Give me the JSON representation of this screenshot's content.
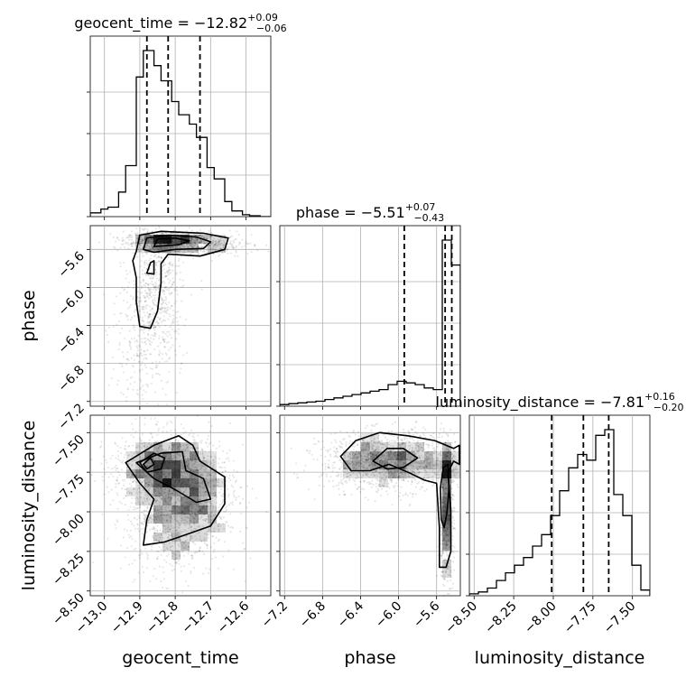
{
  "chart_data": {
    "type": "corner",
    "parameters": [
      "geocent_time",
      "phase",
      "luminosity_distance"
    ],
    "titles": [
      {
        "param": "geocent_time",
        "prefix": "geocent_time = ",
        "median": "−12.82",
        "plus": "+0.09",
        "minus": "−0.06"
      },
      {
        "param": "phase",
        "prefix": "phase = ",
        "median": "−5.51",
        "plus": "+0.07",
        "minus": "−0.43"
      },
      {
        "param": "luminosity_distance",
        "prefix": "luminosity_distance = ",
        "median": "−7.81",
        "plus": "+0.16",
        "minus": "−0.20"
      }
    ],
    "ranges": {
      "geocent_time": [
        -13.04,
        -12.53
      ],
      "phase": [
        -7.25,
        -5.35
      ],
      "luminosity_distance": [
        -8.53,
        -7.39
      ]
    },
    "ticks": {
      "geocent_time": [
        -13.0,
        -12.9,
        -12.8,
        -12.7,
        -12.6
      ],
      "phase": [
        -7.2,
        -6.8,
        -6.4,
        -6.0,
        -5.6
      ],
      "luminosity_distance": [
        -8.5,
        -8.25,
        -8.0,
        -7.75,
        -7.5
      ]
    },
    "tick_labels": {
      "geocent_time": [
        "−13.0",
        "−12.9",
        "−12.8",
        "−12.7",
        "−12.6"
      ],
      "phase": [
        "−7.2",
        "−6.8",
        "−6.4",
        "−6.0",
        "−5.6"
      ],
      "phase_y": [
        "−7.2",
        "−6.8",
        "−6.4",
        "−6.0",
        "−5.6"
      ],
      "luminosity_distance": [
        "−8.50",
        "−8.25",
        "−8.00",
        "−7.75",
        "−7.50"
      ]
    },
    "axis_labels": {
      "x": [
        "geocent_time",
        "phase",
        "luminosity_distance"
      ],
      "y": [
        "phase",
        "luminosity_distance"
      ]
    },
    "quantiles": {
      "geocent_time": [
        -12.88,
        -12.82,
        -12.73
      ],
      "phase": [
        -5.94,
        -5.51,
        -5.44
      ],
      "luminosity_distance": [
        -8.01,
        -7.81,
        -7.65
      ]
    },
    "histograms": {
      "geocent_time": {
        "edges": [
          -13.04,
          -13.01,
          -12.99,
          -12.96,
          -12.94,
          -12.91,
          -12.89,
          -12.86,
          -12.84,
          -12.81,
          -12.79,
          -12.76,
          -12.74,
          -12.71,
          -12.69,
          -12.66,
          -12.64,
          -12.61,
          -12.59,
          -12.56,
          -12.53
        ],
        "counts": [
          0.02,
          0.04,
          0.05,
          0.13,
          0.27,
          0.74,
          0.88,
          0.8,
          0.72,
          0.61,
          0.54,
          0.49,
          0.42,
          0.26,
          0.2,
          0.08,
          0.03,
          0.01,
          0.005,
          0
        ]
      },
      "phase": {
        "edges": [
          -7.25,
          -7.155,
          -7.06,
          -6.965,
          -6.87,
          -6.775,
          -6.68,
          -6.585,
          -6.49,
          -6.395,
          -6.3,
          -6.205,
          -6.11,
          -6.015,
          -5.92,
          -5.825,
          -5.73,
          -5.635,
          -5.54,
          -5.445,
          -5.35
        ],
        "counts": [
          0.01,
          0.015,
          0.02,
          0.025,
          0.03,
          0.04,
          0.05,
          0.06,
          0.07,
          0.08,
          0.09,
          0.1,
          0.13,
          0.15,
          0.14,
          0.13,
          0.11,
          0.1,
          1.0,
          0.85
        ]
      },
      "luminosity_distance": {
        "edges": [
          -8.53,
          -8.473,
          -8.416,
          -8.359,
          -8.302,
          -8.245,
          -8.188,
          -8.131,
          -8.074,
          -8.017,
          -7.96,
          -7.903,
          -7.846,
          -7.789,
          -7.732,
          -7.675,
          -7.618,
          -7.561,
          -7.504,
          -7.447,
          -7.39
        ],
        "counts": [
          0.01,
          0.02,
          0.04,
          0.08,
          0.12,
          0.16,
          0.2,
          0.26,
          0.32,
          0.42,
          0.55,
          0.67,
          0.74,
          0.71,
          0.84,
          0.87,
          0.53,
          0.42,
          0.16,
          0.03
        ]
      }
    },
    "pairs": [
      {
        "x": "geocent_time",
        "y": "phase",
        "blobs": [
          {
            "cx": -12.82,
            "cy": -5.52,
            "sx": 0.06,
            "sy": 0.05,
            "n": 900,
            "rho": 0
          },
          {
            "cx": -12.85,
            "cy": -6.05,
            "sx": 0.035,
            "sy": 0.35,
            "n": 550,
            "rho": 0
          },
          {
            "cx": -12.89,
            "cy": -6.6,
            "sx": 0.05,
            "sy": 0.35,
            "n": 250,
            "rho": 0
          },
          {
            "cx": -12.7,
            "cy": -5.55,
            "sx": 0.06,
            "sy": 0.06,
            "n": 250,
            "rho": 0
          }
        ],
        "contours": [
          [
            [
              -12.91,
              -5.62
            ],
            [
              -12.9,
              -5.45
            ],
            [
              -12.84,
              -5.41
            ],
            [
              -12.72,
              -5.43
            ],
            [
              -12.65,
              -5.48
            ],
            [
              -12.66,
              -5.6
            ],
            [
              -12.73,
              -5.67
            ],
            [
              -12.82,
              -5.65
            ],
            [
              -12.84,
              -5.75
            ],
            [
              -12.84,
              -5.95
            ],
            [
              -12.85,
              -6.25
            ],
            [
              -12.87,
              -6.43
            ],
            [
              -12.9,
              -6.41
            ],
            [
              -12.91,
              -6.15
            ],
            [
              -12.91,
              -5.9
            ],
            [
              -12.92,
              -5.72
            ],
            [
              -12.91,
              -5.62
            ]
          ],
          [
            [
              -12.89,
              -5.6
            ],
            [
              -12.88,
              -5.48
            ],
            [
              -12.82,
              -5.45
            ],
            [
              -12.74,
              -5.47
            ],
            [
              -12.7,
              -5.52
            ],
            [
              -12.72,
              -5.59
            ],
            [
              -12.8,
              -5.6
            ],
            [
              -12.86,
              -5.63
            ],
            [
              -12.89,
              -5.6
            ]
          ],
          [
            [
              -12.88,
              -5.85
            ],
            [
              -12.87,
              -5.74
            ],
            [
              -12.86,
              -5.72
            ],
            [
              -12.86,
              -5.86
            ],
            [
              -12.88,
              -5.85
            ]
          ],
          [
            [
              -12.86,
              -5.57
            ],
            [
              -12.85,
              -5.49
            ],
            [
              -12.8,
              -5.48
            ],
            [
              -12.76,
              -5.51
            ],
            [
              -12.79,
              -5.55
            ],
            [
              -12.86,
              -5.57
            ]
          ]
        ]
      },
      {
        "x": "geocent_time",
        "y": "luminosity_distance",
        "blobs": [
          {
            "cx": -12.84,
            "cy": -7.72,
            "sx": 0.07,
            "sy": 0.12,
            "n": 900,
            "rho": 0
          },
          {
            "cx": -12.8,
            "cy": -8.05,
            "sx": 0.07,
            "sy": 0.18,
            "n": 800,
            "rho": 0
          },
          {
            "cx": -12.74,
            "cy": -7.85,
            "sx": 0.06,
            "sy": 0.15,
            "n": 500,
            "rho": 0
          }
        ],
        "contours": [
          [
            [
              -12.94,
              -7.69
            ],
            [
              -12.86,
              -7.58
            ],
            [
              -12.79,
              -7.52
            ],
            [
              -12.75,
              -7.58
            ],
            [
              -12.73,
              -7.68
            ],
            [
              -12.66,
              -7.78
            ],
            [
              -12.66,
              -7.95
            ],
            [
              -12.7,
              -8.09
            ],
            [
              -12.79,
              -8.16
            ],
            [
              -12.83,
              -8.19
            ],
            [
              -12.89,
              -8.21
            ],
            [
              -12.88,
              -8.05
            ],
            [
              -12.86,
              -7.92
            ],
            [
              -12.9,
              -7.82
            ],
            [
              -12.94,
              -7.69
            ]
          ],
          [
            [
              -12.91,
              -7.69
            ],
            [
              -12.84,
              -7.63
            ],
            [
              -12.78,
              -7.62
            ],
            [
              -12.77,
              -7.74
            ],
            [
              -12.72,
              -7.79
            ],
            [
              -12.7,
              -7.92
            ],
            [
              -12.74,
              -7.94
            ],
            [
              -12.8,
              -7.86
            ],
            [
              -12.86,
              -7.79
            ],
            [
              -12.91,
              -7.69
            ]
          ],
          [
            [
              -12.9,
              -7.69
            ],
            [
              -12.86,
              -7.63
            ],
            [
              -12.83,
              -7.66
            ],
            [
              -12.84,
              -7.73
            ],
            [
              -12.88,
              -7.75
            ],
            [
              -12.9,
              -7.69
            ]
          ],
          [
            [
              -12.89,
              -7.7
            ],
            [
              -12.87,
              -7.66
            ],
            [
              -12.86,
              -7.7
            ],
            [
              -12.88,
              -7.73
            ],
            [
              -12.89,
              -7.7
            ]
          ]
        ]
      },
      {
        "x": "phase",
        "y": "luminosity_distance",
        "blobs": [
          {
            "cx": -6.1,
            "cy": -7.68,
            "sx": 0.35,
            "sy": 0.09,
            "n": 1400,
            "rho": 0
          },
          {
            "cx": -5.5,
            "cy": -8.05,
            "sx": 0.04,
            "sy": 0.2,
            "n": 500,
            "rho": 0
          },
          {
            "cx": -5.47,
            "cy": -7.7,
            "sx": 0.05,
            "sy": 0.08,
            "n": 200,
            "rho": 0
          }
        ],
        "contours": [
          [
            [
              -6.61,
              -7.65
            ],
            [
              -6.45,
              -7.55
            ],
            [
              -6.2,
              -7.5
            ],
            [
              -5.9,
              -7.52
            ],
            [
              -5.62,
              -7.55
            ],
            [
              -5.42,
              -7.6
            ],
            [
              -5.36,
              -7.58
            ],
            [
              -5.36,
              -7.7
            ],
            [
              -5.42,
              -7.68
            ],
            [
              -5.48,
              -7.75
            ],
            [
              -5.45,
              -8.0
            ],
            [
              -5.45,
              -8.25
            ],
            [
              -5.5,
              -8.35
            ],
            [
              -5.57,
              -8.35
            ],
            [
              -5.57,
              -8.1
            ],
            [
              -5.6,
              -7.82
            ],
            [
              -5.73,
              -7.8
            ],
            [
              -5.9,
              -7.75
            ],
            [
              -6.1,
              -7.7
            ],
            [
              -6.3,
              -7.74
            ],
            [
              -6.5,
              -7.74
            ],
            [
              -6.61,
              -7.65
            ]
          ],
          [
            [
              -6.27,
              -7.68
            ],
            [
              -6.12,
              -7.6
            ],
            [
              -5.95,
              -7.6
            ],
            [
              -5.8,
              -7.66
            ],
            [
              -5.95,
              -7.72
            ],
            [
              -6.12,
              -7.73
            ],
            [
              -6.27,
              -7.68
            ]
          ],
          [
            [
              -5.53,
              -7.72
            ],
            [
              -5.48,
              -7.7
            ],
            [
              -5.47,
              -7.85
            ],
            [
              -5.49,
              -8.0
            ],
            [
              -5.52,
              -8.1
            ],
            [
              -5.55,
              -8.05
            ],
            [
              -5.56,
              -7.85
            ],
            [
              -5.53,
              -7.72
            ]
          ]
        ]
      }
    ]
  }
}
